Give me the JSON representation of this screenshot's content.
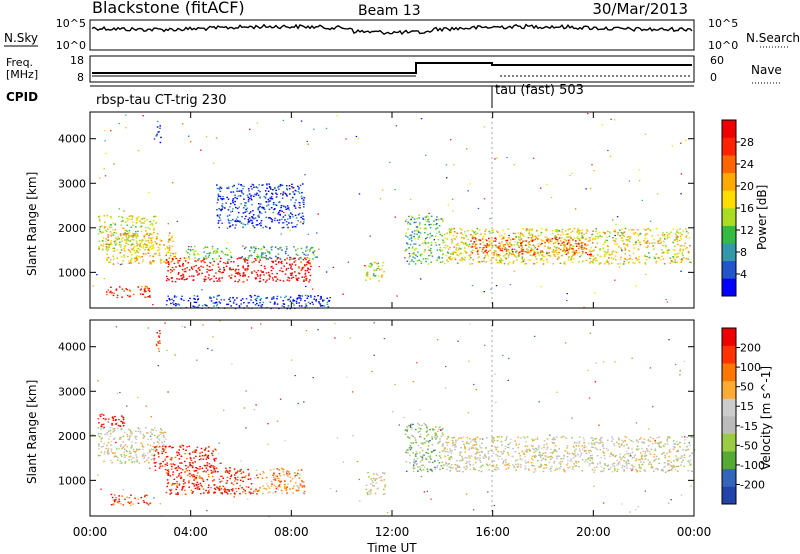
{
  "header": {
    "station": "Blackstone (fitACF)",
    "beam": "Beam 13",
    "date": "30/Mar/2013"
  },
  "strip_labels": {
    "nsky": "N.Sky",
    "nsearch": "N.Search",
    "freq_line1": "Freq.",
    "freq_line2": "[MHz]",
    "nave": "Nave",
    "cpid": "CPID",
    "nsky_top": "10^5",
    "nsky_bottom": "10^0",
    "nsearch_top": "10^5",
    "nsearch_bottom": "10^0",
    "freq_top": "18",
    "freq_bottom": "8",
    "nave_top": "60",
    "nave_bottom": "0"
  },
  "cpid_segments": [
    {
      "label": "rbsp-tau CT-trig 230",
      "start_hour": 0
    },
    {
      "label": "tau (fast) 503",
      "start_hour": 16
    }
  ],
  "colors": {
    "power": [
      "#0000ff",
      "#2255cc",
      "#3399aa",
      "#33bb44",
      "#aadd22",
      "#ffdd00",
      "#ffaa00",
      "#ff6600",
      "#ff2200",
      "#ee0000"
    ],
    "velocity": [
      "#2244aa",
      "#3366bb",
      "#55aa33",
      "#99cc44",
      "#bbbbbb",
      "#cccccc",
      "#ffaa33",
      "#ff7700",
      "#ff3300",
      "#ee0000"
    ]
  },
  "chart_data": [
    {
      "type": "heatmap",
      "panel": "power",
      "x": [
        "00:00",
        "04:00",
        "08:00",
        "12:00",
        "16:00",
        "20:00",
        "00:00"
      ],
      "ylabel": "Slant Range [km]",
      "y_ticks": [
        1000,
        2000,
        3000,
        4000
      ],
      "ylim": [
        200,
        4600
      ],
      "xlim_hours": [
        0,
        24
      ],
      "colorbar_label": "Power [dB]",
      "colorbar_ticks": [
        "4",
        "8",
        "12",
        "16",
        "20",
        "24",
        "28"
      ],
      "scatter_regions": [
        {
          "t0": 0.3,
          "t1": 2.6,
          "r0": 1500,
          "r1": 2300,
          "level": 0.5
        },
        {
          "t0": 0.6,
          "t1": 3.4,
          "r0": 1200,
          "r1": 1900,
          "level": 0.6
        },
        {
          "t0": 3.0,
          "t1": 8.8,
          "r0": 800,
          "r1": 1350,
          "level": 0.95
        },
        {
          "t0": 0.6,
          "t1": 2.4,
          "r0": 450,
          "r1": 700,
          "level": 0.85
        },
        {
          "t0": 3.8,
          "t1": 5.6,
          "r0": 1300,
          "r1": 1600,
          "level": 0.4
        },
        {
          "t0": 6.0,
          "t1": 9.0,
          "r0": 1300,
          "r1": 1600,
          "level": 0.3
        },
        {
          "t0": 10.9,
          "t1": 11.7,
          "r0": 800,
          "r1": 1250,
          "level": 0.5
        },
        {
          "t0": 12.5,
          "t1": 14.0,
          "r0": 1200,
          "r1": 2300,
          "level": 0.35
        },
        {
          "t0": 14.0,
          "t1": 23.9,
          "r0": 1200,
          "r1": 2000,
          "level": 0.55
        },
        {
          "t0": 15.0,
          "t1": 20.0,
          "r0": 1400,
          "r1": 1800,
          "level": 0.8
        },
        {
          "t0": 2.6,
          "t1": 2.8,
          "r0": 3900,
          "r1": 4400,
          "level": 0.1
        },
        {
          "t0": 3.0,
          "t1": 9.5,
          "r0": 200,
          "r1": 500,
          "level": 0.1
        },
        {
          "t0": 5.0,
          "t1": 8.5,
          "r0": 2000,
          "r1": 3000,
          "level": 0.1
        }
      ]
    },
    {
      "type": "heatmap",
      "panel": "velocity",
      "x": [
        "00:00",
        "04:00",
        "08:00",
        "12:00",
        "16:00",
        "20:00",
        "00:00"
      ],
      "xlabel": "Time UT",
      "ylabel": "Slant Range [km]",
      "y_ticks": [
        1000,
        2000,
        3000,
        4000
      ],
      "ylim": [
        200,
        4600
      ],
      "xlim_hours": [
        0,
        24
      ],
      "colorbar_label": "Velocity [m s^-1]",
      "colorbar_ticks": [
        "200",
        "100",
        "50",
        "15",
        "-15",
        "-50",
        "-100",
        "-200"
      ],
      "scatter_regions": [
        {
          "t0": 0.3,
          "t1": 1.5,
          "r0": 2200,
          "r1": 2500,
          "level": 0.95
        },
        {
          "t0": 0.3,
          "t1": 3.0,
          "r0": 1400,
          "r1": 2200,
          "level": 0.5
        },
        {
          "t0": 2.5,
          "t1": 5.0,
          "r0": 1200,
          "r1": 1800,
          "level": 0.95
        },
        {
          "t0": 3.0,
          "t1": 6.5,
          "r0": 700,
          "r1": 1300,
          "level": 0.9
        },
        {
          "t0": 6.5,
          "t1": 8.5,
          "r0": 700,
          "r1": 1300,
          "level": 0.7
        },
        {
          "t0": 0.8,
          "t1": 2.4,
          "r0": 450,
          "r1": 700,
          "level": 0.85
        },
        {
          "t0": 10.9,
          "t1": 11.7,
          "r0": 700,
          "r1": 1200,
          "level": 0.5
        },
        {
          "t0": 12.5,
          "t1": 14.0,
          "r0": 1200,
          "r1": 2300,
          "level": 0.35
        },
        {
          "t0": 14.0,
          "t1": 23.9,
          "r0": 1200,
          "r1": 2000,
          "level": 0.5
        },
        {
          "t0": 2.6,
          "t1": 2.8,
          "r0": 3900,
          "r1": 4400,
          "level": 0.95
        }
      ]
    }
  ]
}
